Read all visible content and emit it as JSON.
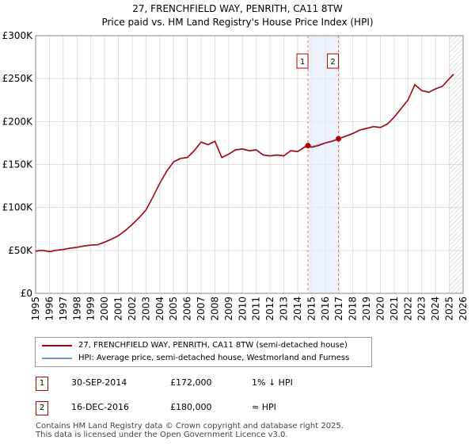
{
  "title": {
    "line1": "27, FRENCHFIELD WAY, PENRITH, CA11 8TW",
    "line2": "Price paid vs. HM Land Registry's House Price Index (HPI)"
  },
  "legend": {
    "property_label": "27, FRENCHFIELD WAY, PENRITH, CA11 8TW (semi-detached house)",
    "hpi_label": "HPI: Average price, semi-detached house, Westmorland and Furness",
    "property_color": "#b00000",
    "hpi_color": "#6699dd"
  },
  "sales": [
    {
      "num": "1",
      "date": "30-SEP-2014",
      "price": "£172,000",
      "hpi_note": "1% ↓ HPI"
    },
    {
      "num": "2",
      "date": "16-DEC-2016",
      "price": "£180,000",
      "hpi_note": "≈ HPI"
    }
  ],
  "footer": {
    "line1": "Contains HM Land Registry data © Crown copyright and database right 2025.",
    "line2": "This data is licensed under the Open Government Licence v3.0."
  },
  "chart_data": {
    "type": "line",
    "title": "27, FRENCHFIELD WAY, PENRITH, CA11 8TW",
    "subtitle": "Price paid vs. HM Land Registry's House Price Index (HPI)",
    "xlabel": "",
    "ylabel": "",
    "xlim": [
      1995,
      2026
    ],
    "ylim": [
      0,
      300000
    ],
    "x_ticks": [
      1995,
      1996,
      1997,
      1998,
      1999,
      2000,
      2001,
      2002,
      2003,
      2004,
      2005,
      2006,
      2007,
      2008,
      2009,
      2010,
      2011,
      2012,
      2013,
      2014,
      2015,
      2016,
      2017,
      2018,
      2019,
      2020,
      2021,
      2022,
      2023,
      2024,
      2025,
      2026
    ],
    "y_ticks": [
      0,
      50000,
      100000,
      150000,
      200000,
      250000,
      300000
    ],
    "y_tick_labels": [
      "£0",
      "£50K",
      "£100K",
      "£150K",
      "£200K",
      "£250K",
      "£300K"
    ],
    "grid": true,
    "legend_position": "below",
    "sale_markers": [
      {
        "label": "1",
        "x": 2014.75,
        "y": 172000
      },
      {
        "label": "2",
        "x": 2016.96,
        "y": 180000
      }
    ],
    "shaded_regions": [
      [
        2014.75,
        2016.96
      ]
    ],
    "future_hatch_from": 2025.0,
    "series": [
      {
        "name": "27, FRENCHFIELD WAY, PENRITH, CA11 8TW (semi-detached house)",
        "color": "#b00000",
        "x": [
          1995.0,
          1995.5,
          1996.0,
          1996.5,
          1997.0,
          1997.5,
          1998.0,
          1998.5,
          1999.0,
          1999.5,
          2000.0,
          2000.5,
          2001.0,
          2001.5,
          2002.0,
          2002.5,
          2003.0,
          2003.5,
          2004.0,
          2004.5,
          2005.0,
          2005.5,
          2006.0,
          2006.5,
          2007.0,
          2007.5,
          2008.0,
          2008.5,
          2009.0,
          2009.5,
          2010.0,
          2010.5,
          2011.0,
          2011.5,
          2012.0,
          2012.5,
          2013.0,
          2013.5,
          2014.0,
          2014.5,
          2014.75,
          2015.0,
          2015.5,
          2016.0,
          2016.5,
          2016.96,
          2017.5,
          2018.0,
          2018.5,
          2019.0,
          2019.5,
          2020.0,
          2020.5,
          2021.0,
          2021.5,
          2022.0,
          2022.5,
          2023.0,
          2023.5,
          2024.0,
          2024.5,
          2025.0,
          2025.3
        ],
        "values": [
          49000,
          50000,
          48500,
          50000,
          51000,
          52500,
          53500,
          55000,
          56000,
          56500,
          59500,
          63000,
          67000,
          73000,
          80000,
          88000,
          97000,
          112000,
          128000,
          142000,
          153000,
          157000,
          158000,
          166000,
          176000,
          173000,
          177000,
          158000,
          162000,
          167000,
          168000,
          166000,
          167000,
          161000,
          160000,
          161000,
          160000,
          166000,
          165000,
          170000,
          172000,
          170000,
          172000,
          175000,
          177000,
          180000,
          183000,
          186000,
          190000,
          192000,
          194000,
          193000,
          197000,
          205000,
          215000,
          225000,
          243000,
          236000,
          234000,
          238000,
          241000,
          250000,
          255000
        ]
      },
      {
        "name": "HPI: Average price, semi-detached house, Westmorland and Furness",
        "color": "#6699dd",
        "x": [
          1995.0,
          1995.5,
          1996.0,
          1996.5,
          1997.0,
          1997.5,
          1998.0,
          1998.5,
          1999.0,
          1999.5,
          2000.0,
          2000.5,
          2001.0,
          2001.5,
          2002.0,
          2002.5,
          2003.0,
          2003.5,
          2004.0,
          2004.5,
          2005.0,
          2005.5,
          2006.0,
          2006.5,
          2007.0,
          2007.5,
          2008.0,
          2008.5,
          2009.0,
          2009.5,
          2010.0,
          2010.5,
          2011.0,
          2011.5,
          2012.0,
          2012.5,
          2013.0,
          2013.5,
          2014.0,
          2014.5,
          2014.75,
          2015.0,
          2015.5,
          2016.0,
          2016.5,
          2016.96,
          2017.5,
          2018.0,
          2018.5,
          2019.0,
          2019.5,
          2020.0,
          2020.5,
          2021.0,
          2021.5,
          2022.0,
          2022.5,
          2023.0,
          2023.5,
          2024.0,
          2024.5,
          2025.0,
          2025.3
        ],
        "values": [
          49500,
          50500,
          49000,
          50500,
          51500,
          53000,
          54000,
          55500,
          56500,
          57000,
          60000,
          63500,
          67500,
          73500,
          80500,
          88500,
          97500,
          112500,
          128500,
          142500,
          153500,
          157500,
          158500,
          166500,
          176500,
          173500,
          177500,
          158500,
          162500,
          167500,
          168500,
          166500,
          167500,
          161500,
          160500,
          161500,
          160500,
          166500,
          165500,
          171000,
          173500,
          171000,
          173000,
          175500,
          177500,
          180000,
          183500,
          186500,
          190500,
          192500,
          194500,
          193500,
          197500,
          205500,
          215500,
          225500,
          243500,
          236500,
          234500,
          238500,
          241500,
          250500,
          255500
        ]
      }
    ]
  }
}
